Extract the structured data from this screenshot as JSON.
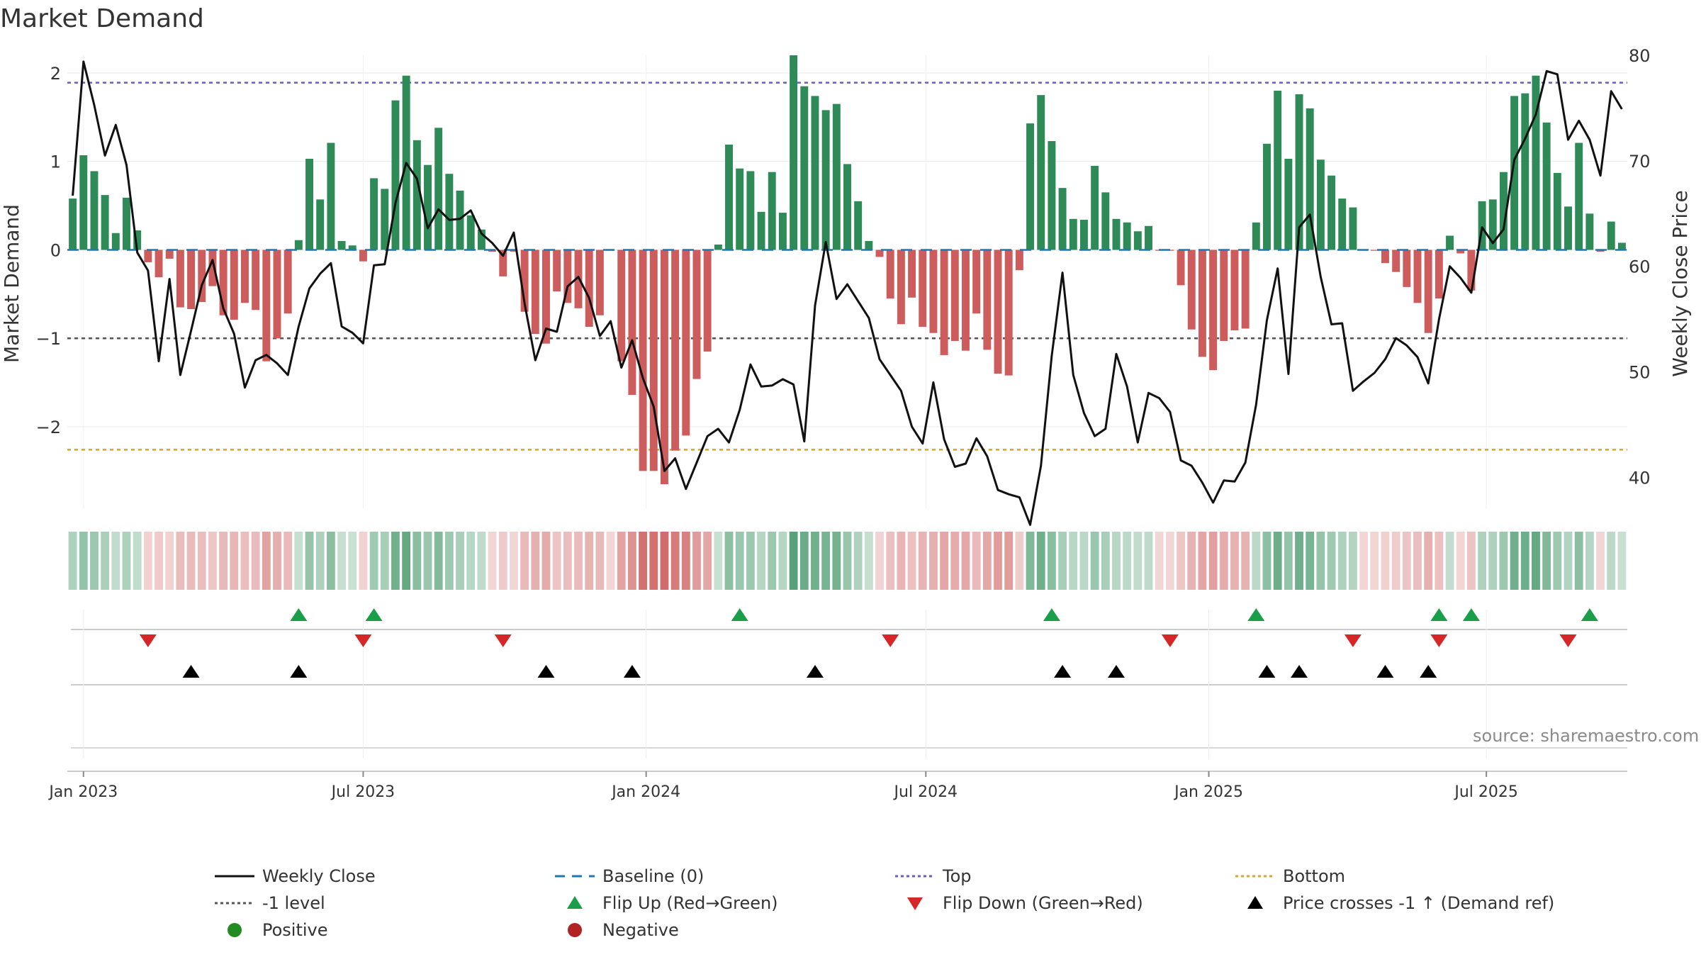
{
  "title": "Market Demand",
  "source": "source: sharemaestro.com",
  "colors": {
    "positive": "#2e8b57",
    "negative": "#cd5c5c",
    "close": "#111111",
    "top": "#6a5acd",
    "bottom": "#daa520",
    "level": "#555555",
    "baseline": "#1f77b4",
    "flip_up": "#1a9e4a",
    "flip_down": "#d62728",
    "cross": "#000000",
    "grid": "#e8e8e8"
  },
  "chart_data": {
    "type": "bar",
    "title": "Market Demand",
    "ylabel": "Market Demand",
    "y2label": "Weekly Close Price",
    "ylim": [
      -2.93,
      2.2
    ],
    "y2lim": [
      37,
      80
    ],
    "yticks": [
      2,
      1,
      0,
      -1,
      -2
    ],
    "yticks_text": [
      "2",
      "1",
      "0",
      "−1",
      "−2"
    ],
    "y2ticks": [
      80,
      70,
      60,
      50,
      40
    ],
    "y2ticks_text": [
      "80",
      "70",
      "60",
      "50",
      "40"
    ],
    "x_start": "2022-12-26",
    "xticks": [
      {
        "label": "Jan 2023",
        "week": 1
      },
      {
        "label": "Jul 2023",
        "week": 27
      },
      {
        "label": "Jan 2024",
        "week": 53.3
      },
      {
        "label": "Jul 2024",
        "week": 79.3
      },
      {
        "label": "Jan 2025",
        "week": 105.6
      },
      {
        "label": "Jul 2025",
        "week": 131.4
      }
    ],
    "reference_lines": {
      "top": 1.89,
      "bottom": -2.26,
      "level": -1,
      "baseline": 0
    },
    "demand": [
      0.58,
      1.07,
      0.89,
      0.62,
      0.19,
      0.59,
      0.22,
      -0.14,
      -0.31,
      -0.1,
      -0.65,
      -0.67,
      -0.59,
      -0.41,
      -0.74,
      -0.79,
      -0.6,
      -0.68,
      -1.26,
      -1.0,
      -0.72,
      0.11,
      1.03,
      0.57,
      1.21,
      0.1,
      0.05,
      -0.13,
      0.81,
      0.69,
      1.69,
      1.97,
      1.24,
      0.96,
      1.38,
      0.86,
      0.67,
      0.39,
      0.23,
      -0.02,
      -0.3,
      -0.02,
      -0.7,
      -0.95,
      -1.06,
      -0.47,
      -0.6,
      -0.66,
      -0.87,
      -0.74,
      -0.01,
      -1.26,
      -1.64,
      -2.5,
      -2.5,
      -2.65,
      -2.27,
      -2.1,
      -1.46,
      -1.15,
      0.06,
      1.19,
      0.92,
      0.89,
      0.43,
      0.88,
      0.42,
      2.2,
      1.85,
      1.74,
      1.58,
      1.65,
      0.97,
      0.55,
      0.1,
      -0.08,
      -0.55,
      -0.84,
      -0.54,
      -0.87,
      -0.94,
      -1.19,
      -1.03,
      -1.14,
      -0.72,
      -1.13,
      -1.4,
      -1.42,
      -0.23,
      1.43,
      1.75,
      1.23,
      0.7,
      0.35,
      0.34,
      0.95,
      0.65,
      0.35,
      0.31,
      0.21,
      0.27,
      -0.01,
      -0.01,
      -0.4,
      -0.9,
      -1.21,
      -1.36,
      -1.03,
      -0.91,
      -0.89,
      0.31,
      1.2,
      1.8,
      1.03,
      1.76,
      1.6,
      1.02,
      0.84,
      0.58,
      0.48,
      -0.01,
      -0.01,
      -0.15,
      -0.25,
      -0.42,
      -0.6,
      -0.94,
      -0.55,
      0.16,
      -0.04,
      -0.46,
      0.55,
      0.57,
      0.88,
      1.74,
      1.77,
      1.97,
      1.44,
      0.87,
      0.49,
      1.21,
      0.41,
      -0.02,
      0.32,
      0.08
    ],
    "close": [
      66.7,
      79.4,
      75.3,
      70.5,
      73.4,
      69.6,
      61.3,
      59.6,
      51.0,
      58.8,
      49.7,
      53.9,
      58.2,
      60.6,
      56.0,
      53.6,
      48.5,
      51.1,
      51.6,
      50.8,
      49.7,
      54.3,
      57.9,
      59.3,
      60.3,
      54.3,
      53.7,
      52.7,
      60.1,
      60.2,
      66.0,
      69.8,
      68.3,
      63.6,
      65.4,
      64.4,
      64.5,
      65.3,
      63.1,
      62.2,
      61.0,
      63.2,
      56.5,
      51.1,
      54.1,
      53.8,
      58.1,
      59.0,
      57.0,
      53.4,
      54.8,
      50.4,
      53.0,
      49.4,
      46.7,
      40.6,
      41.8,
      38.9,
      41.4,
      43.9,
      44.6,
      43.3,
      46.4,
      50.7,
      48.6,
      48.7,
      49.3,
      48.8,
      43.4,
      56.3,
      62.3,
      56.9,
      58.3,
      56.7,
      55.1,
      51.2,
      49.7,
      48.2,
      44.8,
      43.2,
      49.0,
      43.6,
      41.0,
      41.3,
      43.7,
      42.0,
      38.8,
      38.4,
      38.1,
      35.5,
      41.1,
      51.5,
      59.4,
      49.7,
      46.1,
      43.9,
      44.6,
      51.7,
      48.6,
      43.3,
      48.0,
      47.5,
      46.2,
      41.6,
      41.1,
      39.5,
      37.6,
      39.7,
      39.6,
      41.4,
      46.9,
      54.9,
      59.8,
      49.8,
      63.7,
      64.9,
      59.0,
      54.5,
      54.6,
      48.2,
      49.1,
      49.9,
      51.2,
      53.2,
      52.5,
      51.4,
      48.9,
      55.0,
      60.0,
      58.9,
      57.5,
      63.7,
      62.2,
      63.5,
      70.1,
      72.1,
      74.4,
      78.5,
      78.2,
      72.0,
      73.8,
      72.0,
      68.6,
      76.6,
      74.9
    ],
    "flip_up_weeks": [
      21,
      28,
      62,
      91,
      110,
      127,
      130,
      141
    ],
    "flip_down_weeks": [
      7,
      27,
      40,
      76,
      102,
      119,
      127,
      139
    ],
    "cross_up_weeks": [
      11,
      21,
      44,
      52,
      69,
      92,
      97,
      111,
      114,
      122,
      126
    ]
  },
  "legend": [
    {
      "label": "Weekly Close",
      "icon": "solid-line-icon",
      "color": "#111111"
    },
    {
      "label": "Baseline (0)",
      "icon": "dash-line-icon",
      "color": "#1f77b4"
    },
    {
      "label": "Top",
      "icon": "dotted-line-icon",
      "color": "#6a5acd"
    },
    {
      "label": "Bottom",
      "icon": "dotted-line-icon",
      "color": "#daa520"
    },
    {
      "label": "-1 level",
      "icon": "dotted-line-icon",
      "color": "#555555"
    },
    {
      "label": "Flip Up (Red→Green)",
      "icon": "triangle-up-icon",
      "color": "#1a9e4a"
    },
    {
      "label": "Flip Down (Green→Red)",
      "icon": "triangle-down-icon",
      "color": "#d62728"
    },
    {
      "label": "Price crosses -1 ↑ (Demand ref)",
      "icon": "triangle-up-icon",
      "color": "#000000"
    },
    {
      "label": "Positive",
      "icon": "circle-icon",
      "color": "#228b22"
    },
    {
      "label": "Negative",
      "icon": "circle-icon",
      "color": "#b22222"
    }
  ]
}
